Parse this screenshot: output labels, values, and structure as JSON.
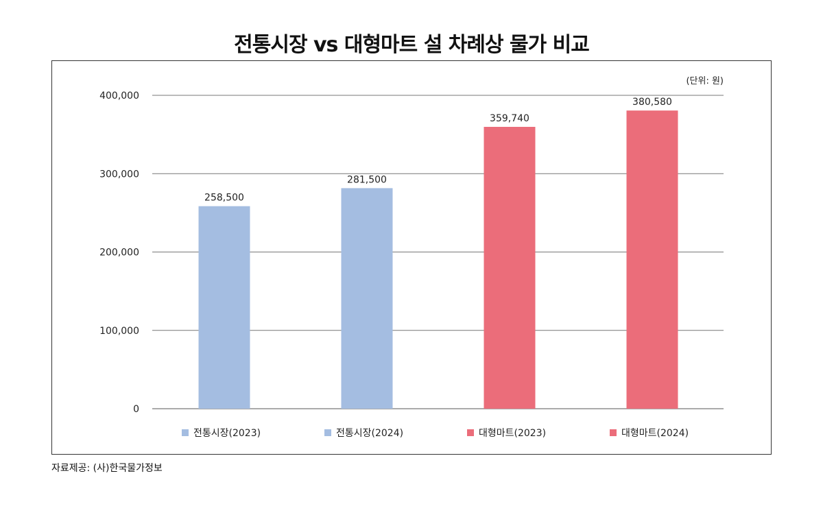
{
  "title": "전통시장 vs 대형마트 설 차례상 물가 비교",
  "source": "자료제공: (사)한국물가정보",
  "chart_data": {
    "type": "bar",
    "title": "전통시장 vs 대형마트 설 차례상 물가 비교",
    "unit_label": "(단위: 원)",
    "categories": [
      "전통시장(2023)",
      "전통시장(2024)",
      "대형마트(2023)",
      "대형마트(2024)"
    ],
    "values": [
      258500,
      281500,
      359740,
      380580
    ],
    "value_labels": [
      "258,500",
      "281,500",
      "359,740",
      "380,580"
    ],
    "colors": [
      "#a4bde1",
      "#a4bde1",
      "#eb6d7a",
      "#eb6d7a"
    ],
    "yticks": [
      0,
      100000,
      200000,
      300000,
      400000
    ],
    "ytick_labels": [
      "0",
      "100,000",
      "200,000",
      "300,000",
      "400,000"
    ],
    "ylim": [
      0,
      400000
    ],
    "grid": true,
    "legend_position": "bottom",
    "xlabel": "",
    "ylabel": ""
  }
}
